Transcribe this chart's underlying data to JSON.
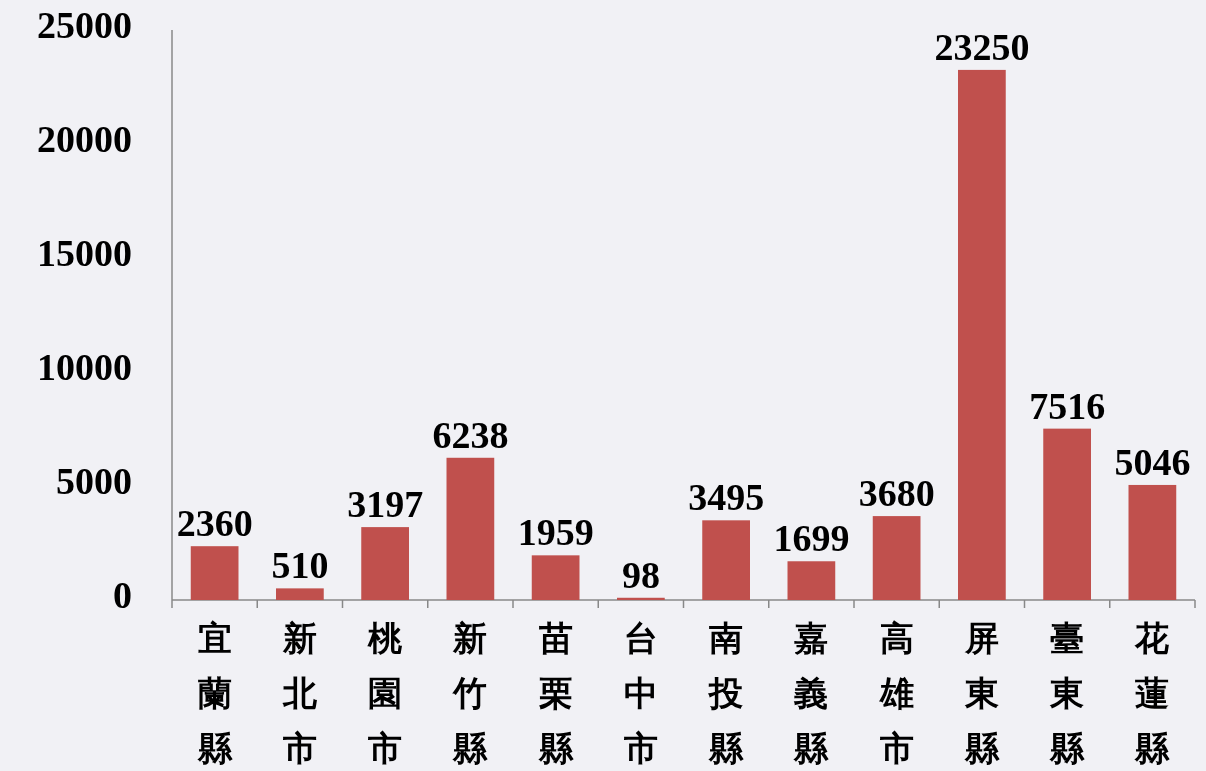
{
  "chart_data": {
    "type": "bar",
    "categories": [
      "宜蘭縣",
      "新北市",
      "桃園市",
      "新竹縣",
      "苗栗縣",
      "台中市",
      "南投縣",
      "嘉義縣",
      "高雄市",
      "屏東縣",
      "臺東縣",
      "花蓮縣"
    ],
    "values": [
      2360,
      510,
      3197,
      6238,
      1959,
      98,
      3495,
      1699,
      3680,
      23250,
      7516,
      5046
    ],
    "color": "#c0504d",
    "ylim": [
      0,
      25000
    ],
    "yticks": [
      0,
      5000,
      10000,
      15000,
      20000,
      25000
    ],
    "data_labels": true,
    "grid": false
  }
}
